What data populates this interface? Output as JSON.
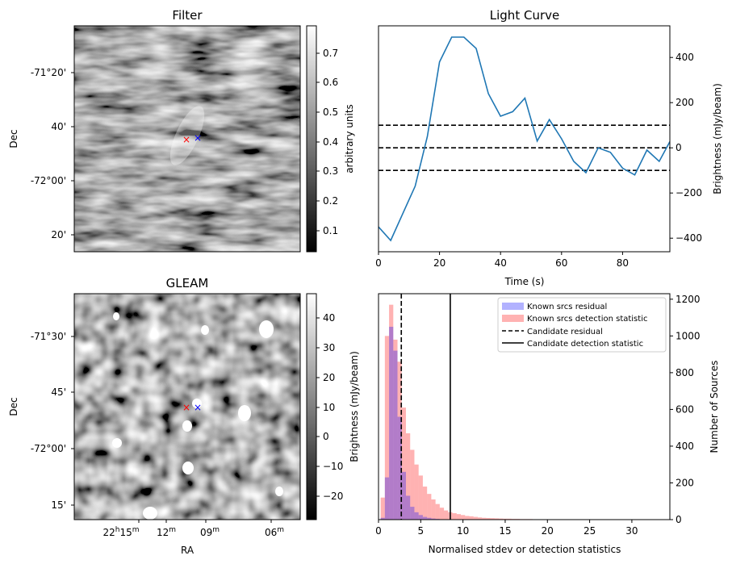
{
  "panels": {
    "filter": {
      "title": "Filter",
      "ylabel": "Dec",
      "yticks": [
        "-71°20'",
        "40'",
        "-72°00'",
        "20'"
      ],
      "colorbar": {
        "label": "arbitrary units",
        "ticks": [
          "0.7",
          "0.6",
          "0.5",
          "0.4",
          "0.3",
          "0.2",
          "0.1"
        ]
      }
    },
    "gleam": {
      "title": "GLEAM",
      "ylabel": "Dec",
      "xlabel": "RA",
      "yticks": [
        "-71°30'",
        "45'",
        "-72°00'",
        "15'"
      ],
      "xticks": [
        {
          "base": "22",
          "sup1": "h",
          "mid": "15",
          "sup2": "m"
        },
        {
          "base": "12",
          "sup1": "",
          "mid": "",
          "sup2": "m"
        },
        {
          "base": "09",
          "sup1": "",
          "mid": "",
          "sup2": "m"
        },
        {
          "base": "06",
          "sup1": "",
          "mid": "",
          "sup2": "m"
        }
      ],
      "colorbar": {
        "label": "Brightness (mJy/beam)",
        "ticks": [
          "40",
          "30",
          "20",
          "10",
          "0",
          "−10",
          "−20"
        ]
      }
    },
    "markers": {
      "red_color": "#ff0000",
      "blue_color": "#0000ff",
      "symbol": "×"
    }
  },
  "chart_data": [
    {
      "type": "line",
      "title": "Light Curve",
      "xlabel": "Time (s)",
      "ylabel": "Brightness (mJy/beam)",
      "xlim": [
        0,
        95.5
      ],
      "ylim": [
        -460,
        540
      ],
      "xticks": [
        0,
        20,
        40,
        60,
        80
      ],
      "yticks": [
        400,
        200,
        0,
        -200,
        -400
      ],
      "series": [
        {
          "color": "#1f77b4",
          "x": [
            0,
            4,
            8,
            12,
            16,
            20,
            24,
            28,
            32,
            36,
            40,
            44,
            48,
            52,
            56,
            60,
            64,
            68,
            72,
            76,
            80,
            84,
            88,
            92,
            96
          ],
          "y": [
            -350,
            -410,
            -290,
            -170,
            50,
            380,
            490,
            490,
            440,
            240,
            140,
            160,
            220,
            30,
            125,
            40,
            -60,
            -110,
            0,
            -20,
            -90,
            -120,
            -10,
            -60,
            40
          ]
        }
      ],
      "hlines": [
        100,
        0,
        -100
      ],
      "hline_style": "dashed"
    },
    {
      "type": "bar",
      "title": "",
      "xlabel": "Normalised stdev or detection statistics",
      "ylabel": "Number of Sources",
      "left_label": "Brightness (mJy/beam)",
      "xlim": [
        0,
        34.5
      ],
      "ylim": [
        0,
        1230
      ],
      "xticks": [
        0,
        5,
        10,
        15,
        20,
        25,
        30
      ],
      "yticks": [
        0,
        200,
        400,
        600,
        800,
        1000,
        1200
      ],
      "bin_width": 0.5,
      "bin_start": 0.25,
      "series": [
        {
          "name": "Known srcs residual",
          "color": "#0000ff",
          "alpha": 0.3,
          "values": [
            10,
            230,
            1050,
            920,
            560,
            260,
            130,
            70,
            40,
            25,
            15,
            10,
            6,
            4,
            2,
            1
          ]
        },
        {
          "name": "Known srcs detection statistic",
          "color": "#ff0000",
          "alpha": 0.3,
          "values": [
            120,
            1000,
            1170,
            980,
            860,
            610,
            470,
            380,
            300,
            240,
            180,
            140,
            110,
            85,
            65,
            50,
            40,
            35,
            30,
            25,
            20,
            18,
            15,
            12,
            10,
            9,
            8,
            7,
            6,
            5,
            5,
            4,
            4,
            3,
            3,
            3,
            2,
            2,
            2,
            2,
            2,
            2,
            1,
            1,
            1,
            1,
            1,
            1,
            1,
            1
          ]
        }
      ],
      "vlines": [
        {
          "name": "Candidate residual",
          "x": 2.7,
          "style": "dashed"
        },
        {
          "name": "Candidate detection statistic",
          "x": 8.5,
          "style": "solid"
        }
      ]
    }
  ]
}
